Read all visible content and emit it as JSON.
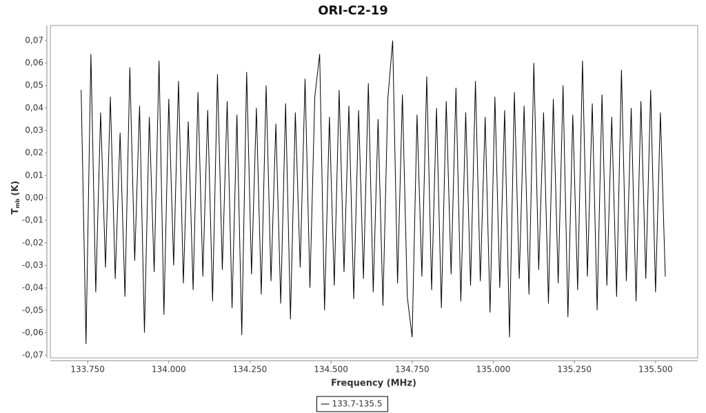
{
  "chart_data": {
    "type": "line",
    "title": "ORI-C2-19",
    "x_label": "Frequency (MHz)",
    "y_label": "T",
    "y_label_subscript": "mb",
    "y_label_unit": "(K)",
    "xlim": [
      133.635,
      135.63
    ],
    "ylim": [
      -0.0712,
      0.0767
    ],
    "xticks": [
      {
        "value": 133.75,
        "label": "133.750"
      },
      {
        "value": 134.0,
        "label": "134.000"
      },
      {
        "value": 134.25,
        "label": "134.250"
      },
      {
        "value": 134.5,
        "label": "134.500"
      },
      {
        "value": 134.75,
        "label": "134.750"
      },
      {
        "value": 135.0,
        "label": "135.000"
      },
      {
        "value": 135.25,
        "label": "135.250"
      },
      {
        "value": 135.5,
        "label": "135.500"
      }
    ],
    "yticks": [
      {
        "value": -0.07,
        "label": "-0,07"
      },
      {
        "value": -0.06,
        "label": "-0,06"
      },
      {
        "value": -0.05,
        "label": "-0,05"
      },
      {
        "value": -0.04,
        "label": "-0,04"
      },
      {
        "value": -0.03,
        "label": "-0,03"
      },
      {
        "value": -0.02,
        "label": "-0,02"
      },
      {
        "value": -0.01,
        "label": "-0,01"
      },
      {
        "value": 0,
        "label": "0,00"
      },
      {
        "value": 0.01,
        "label": "0,01"
      },
      {
        "value": 0.02,
        "label": "0,02"
      },
      {
        "value": 0.03,
        "label": "0,03"
      },
      {
        "value": 0.04,
        "label": "0,04"
      },
      {
        "value": 0.05,
        "label": "0,05"
      },
      {
        "value": 0.06,
        "label": "0,06"
      },
      {
        "value": 0.07,
        "label": "0,07"
      }
    ],
    "grid": false,
    "legend": "bottom",
    "x": [
      133.73,
      133.745,
      133.76,
      133.775,
      133.79,
      133.805,
      133.82,
      133.835,
      133.85,
      133.865,
      133.88,
      133.895,
      133.91,
      133.925,
      133.94,
      133.955,
      133.97,
      133.985,
      134.0,
      134.015,
      134.03,
      134.045,
      134.06,
      134.075,
      134.09,
      134.105,
      134.12,
      134.135,
      134.15,
      134.165,
      134.18,
      134.195,
      134.21,
      134.225,
      134.24,
      134.255,
      134.27,
      134.285,
      134.3,
      134.315,
      134.33,
      134.345,
      134.36,
      134.375,
      134.39,
      134.405,
      134.42,
      134.435,
      134.45,
      134.465,
      134.48,
      134.495,
      134.51,
      134.525,
      134.54,
      134.555,
      134.57,
      134.585,
      134.6,
      134.615,
      134.63,
      134.645,
      134.66,
      134.675,
      134.69,
      134.705,
      134.72,
      134.735,
      134.75,
      134.765,
      134.78,
      134.795,
      134.81,
      134.825,
      134.84,
      134.855,
      134.87,
      134.885,
      134.9,
      134.915,
      134.93,
      134.945,
      134.96,
      134.975,
      134.99,
      135.005,
      135.02,
      135.035,
      135.05,
      135.065,
      135.08,
      135.095,
      135.11,
      135.125,
      135.14,
      135.155,
      135.17,
      135.185,
      135.2,
      135.215,
      135.23,
      135.245,
      135.26,
      135.275,
      135.29,
      135.305,
      135.32,
      135.335,
      135.35,
      135.365,
      135.38,
      135.395,
      135.41,
      135.425,
      135.44,
      135.455,
      135.47,
      135.485,
      135.5,
      135.515,
      135.53
    ],
    "series": [
      {
        "name": "133.7-135.5",
        "color": "#000000",
        "values": [
          0.048,
          -0.065,
          0.064,
          -0.042,
          0.038,
          -0.031,
          0.045,
          -0.036,
          0.029,
          -0.044,
          0.058,
          -0.028,
          0.041,
          -0.06,
          0.036,
          -0.033,
          0.061,
          -0.052,
          0.044,
          -0.03,
          0.052,
          -0.038,
          0.034,
          -0.041,
          0.047,
          -0.035,
          0.039,
          -0.046,
          0.055,
          -0.032,
          0.043,
          -0.049,
          0.037,
          -0.061,
          0.056,
          -0.034,
          0.04,
          -0.043,
          0.05,
          -0.037,
          0.033,
          -0.047,
          0.042,
          -0.054,
          0.038,
          -0.031,
          0.053,
          -0.04,
          0.045,
          0.064,
          -0.05,
          0.036,
          -0.039,
          0.048,
          -0.033,
          0.041,
          -0.045,
          0.039,
          -0.036,
          0.051,
          -0.042,
          0.035,
          -0.048,
          0.044,
          0.07,
          -0.038,
          0.046,
          -0.044,
          -0.062,
          0.037,
          -0.035,
          0.054,
          -0.041,
          0.04,
          -0.049,
          0.043,
          -0.034,
          0.049,
          -0.046,
          0.038,
          -0.039,
          0.052,
          -0.037,
          0.036,
          -0.051,
          0.045,
          -0.04,
          0.039,
          -0.062,
          0.047,
          -0.036,
          0.041,
          -0.043,
          0.06,
          -0.032,
          0.038,
          -0.047,
          0.044,
          -0.038,
          0.05,
          -0.053,
          0.037,
          -0.041,
          0.061,
          -0.035,
          0.042,
          -0.05,
          0.046,
          -0.039,
          0.036,
          -0.044,
          0.057,
          -0.037,
          0.04,
          -0.046,
          0.043,
          -0.036,
          0.048,
          -0.042,
          0.038,
          -0.035
        ]
      }
    ]
  }
}
